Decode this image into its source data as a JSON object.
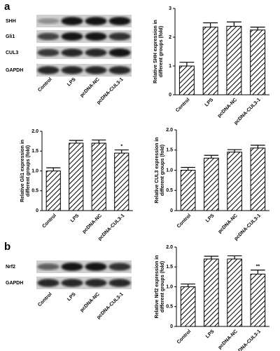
{
  "panels": [
    "a",
    "b"
  ],
  "blots": [
    {
      "rows": [
        "SHH",
        "Gli1",
        "CUL3",
        "GAPDH"
      ],
      "lanes": [
        "Control",
        "LPS",
        "pcDNA-NC",
        "pcDNA-CUL3-1"
      ]
    },
    {
      "rows": [
        "Nrf2",
        "GAPDH"
      ],
      "lanes": [
        "Control",
        "LPS",
        "pcDNA-NC",
        "pcDNA-CUL3-1"
      ]
    }
  ],
  "chart_data": [
    {
      "type": "bar",
      "ylabel": [
        "Relative SHH expression in",
        "different groups (fold)"
      ],
      "categories": [
        "Control",
        "LPS",
        "pcDNA-NC",
        "pcDNA-CUL3-1"
      ],
      "values": [
        1.0,
        2.35,
        2.38,
        2.25
      ],
      "errors": [
        0.13,
        0.15,
        0.15,
        0.1
      ],
      "ylim": [
        0,
        3
      ],
      "yticks": [
        0,
        1,
        2,
        3
      ],
      "color": "#000000"
    },
    {
      "type": "bar",
      "ylabel": [
        "Relative Gli1 expression in",
        "different groups (fold)"
      ],
      "categories": [
        "Control",
        "LPS",
        "pcDNA-NC",
        "pcDNA-CUL3-1"
      ],
      "values": [
        1.0,
        1.7,
        1.7,
        1.45
      ],
      "errors": [
        0.08,
        0.07,
        0.08,
        0.08
      ],
      "value_annotations": [
        null,
        null,
        null,
        "*"
      ],
      "ylim": [
        0,
        2
      ],
      "yticks": [
        0,
        0.5,
        {
          "value": 1,
          "label": "1.0"
        },
        1.5,
        {
          "value": 2,
          "label": "2.0"
        }
      ],
      "color": "#000000"
    },
    {
      "type": "bar",
      "ylabel": [
        "Relative CUL3 expression in",
        "different groups (fold)"
      ],
      "categories": [
        "Control",
        "LPS",
        "pcDNA-NC",
        "pcDNA-CUL3-1"
      ],
      "values": [
        1.0,
        1.3,
        1.45,
        1.55
      ],
      "errors": [
        0.07,
        0.07,
        0.06,
        0.07
      ],
      "ylim": [
        0,
        2
      ],
      "yticks": [
        0,
        0.5,
        {
          "value": 1,
          "label": "1.0"
        },
        1.5,
        {
          "value": 2,
          "label": "2.0"
        }
      ],
      "color": "#000000"
    },
    {
      "type": "bar",
      "ylabel": [
        "Relative Nrf2 expression in",
        "different groups (fold)"
      ],
      "categories": [
        "Control",
        "LPS",
        "pcDNA-NC",
        "pcDNA-CUL3-1"
      ],
      "values": [
        1.0,
        1.7,
        1.7,
        1.32
      ],
      "errors": [
        0.07,
        0.07,
        0.08,
        0.1
      ],
      "value_annotations": [
        null,
        null,
        null,
        "**"
      ],
      "ylim": [
        0,
        2
      ],
      "yticks": [
        0,
        0.5,
        {
          "value": 1,
          "label": "1.0"
        },
        1.5,
        {
          "value": 2,
          "label": "2.0"
        }
      ],
      "color": "#000000"
    }
  ]
}
